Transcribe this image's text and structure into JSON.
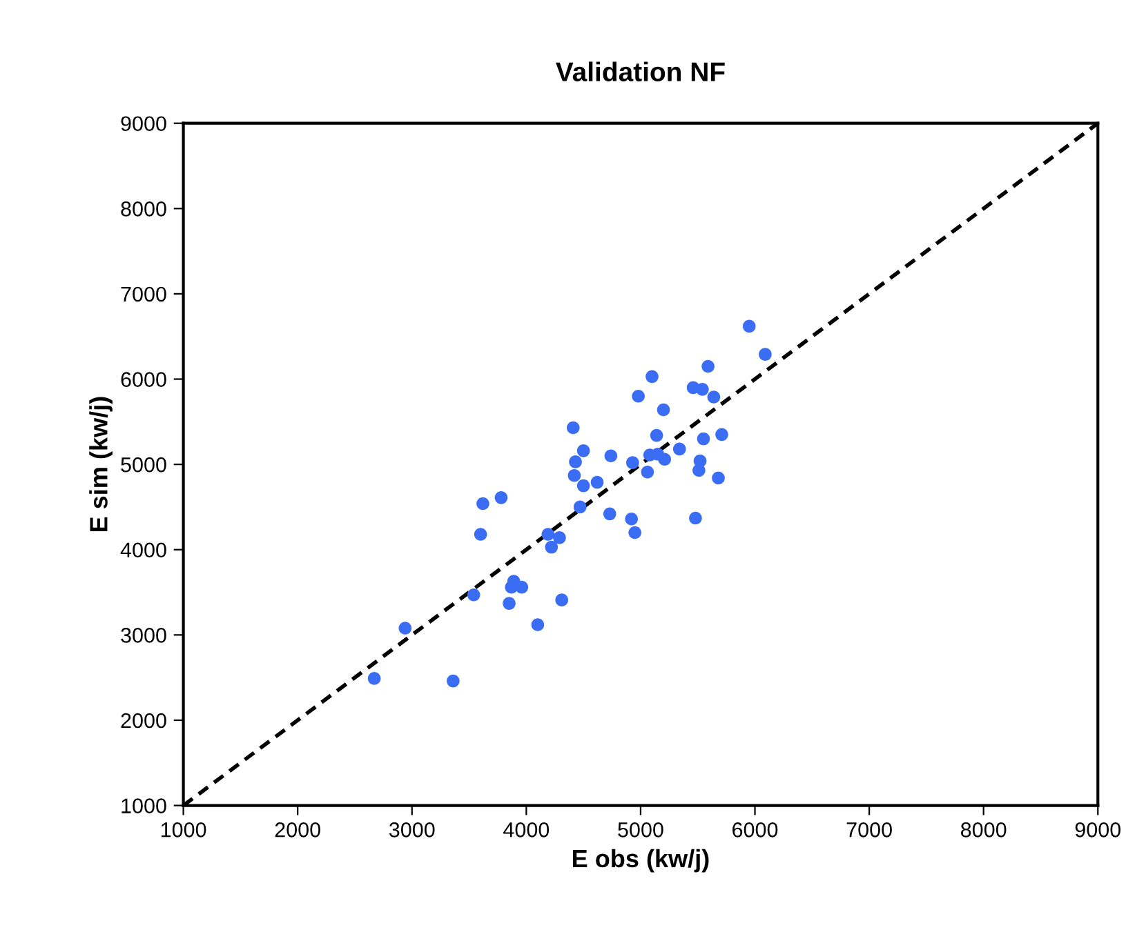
{
  "chart_data": {
    "type": "scatter",
    "title": "Validation NF",
    "xlabel": "E obs (kw/j)",
    "ylabel": "E sim (kw/j)",
    "xlim": [
      1000,
      9000
    ],
    "ylim": [
      1000,
      9000
    ],
    "xticks": [
      1000,
      2000,
      3000,
      4000,
      5000,
      6000,
      7000,
      8000,
      9000
    ],
    "yticks": [
      1000,
      2000,
      3000,
      4000,
      5000,
      6000,
      7000,
      8000,
      9000
    ],
    "grid": false,
    "legend": false,
    "marker": "circle",
    "series": [
      {
        "color": "#3a6cf4",
        "x": [
          2670,
          2940,
          3360,
          3540,
          3600,
          3620,
          3780,
          3850,
          3870,
          3890,
          3960,
          4100,
          4190,
          4220,
          4290,
          4310,
          4410,
          4420,
          4430,
          4470,
          4500,
          4500,
          4620,
          4730,
          4740,
          4920,
          4930,
          4950,
          4980,
          5060,
          5080,
          5100,
          5140,
          5150,
          5200,
          5210,
          5340,
          5460,
          5480,
          5510,
          5520,
          5540,
          5550,
          5590,
          5640,
          5680,
          5710,
          5950,
          6090
        ],
        "values": [
          2490,
          3080,
          2460,
          3470,
          4180,
          4540,
          4610,
          3370,
          3560,
          3630,
          3560,
          3120,
          4180,
          4030,
          4140,
          3410,
          5430,
          4870,
          5030,
          4500,
          4750,
          5160,
          4790,
          4420,
          5100,
          4360,
          5020,
          4200,
          5800,
          4910,
          5110,
          6030,
          5340,
          5120,
          5640,
          5060,
          5180,
          5900,
          4370,
          4930,
          5040,
          5880,
          5300,
          6150,
          5790,
          4840,
          5350,
          6620,
          6290
        ]
      },
      {
        "type": "line",
        "color": "#000000",
        "line_style": "dashed",
        "marker": "none",
        "x": [
          1000,
          9000
        ],
        "values": [
          1000,
          9000
        ]
      }
    ]
  }
}
